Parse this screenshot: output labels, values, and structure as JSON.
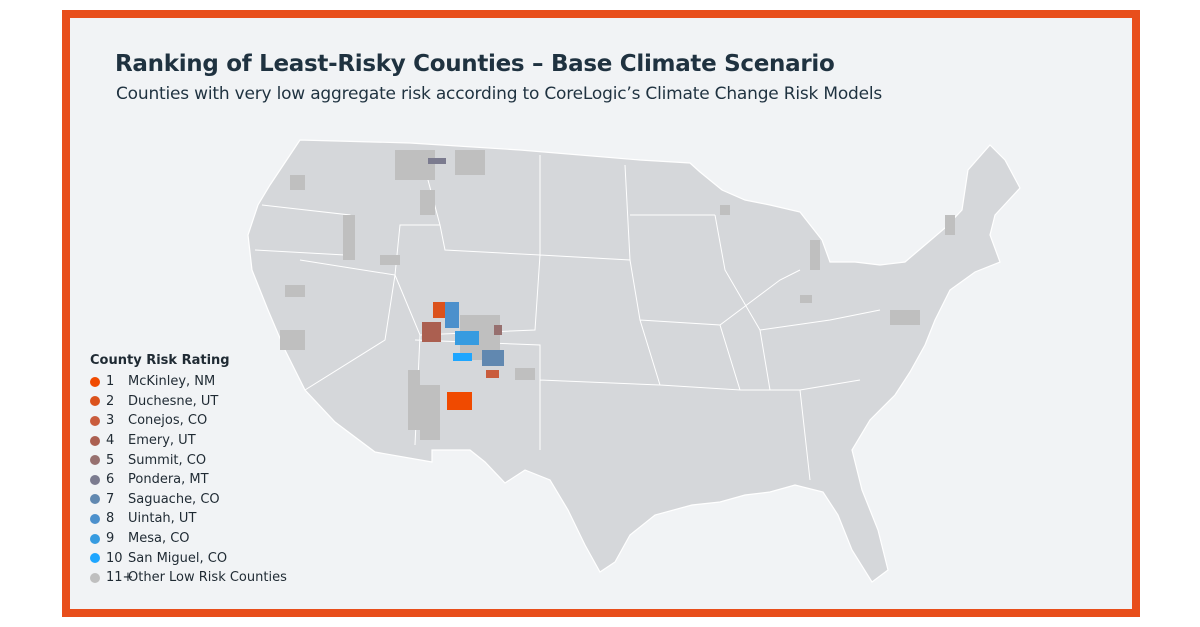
{
  "title": "Ranking of Least-Risky Counties – Base Climate Scenario",
  "subtitle": "Counties with very low aggregate risk according to CoreLogic’s Climate Change Risk Models",
  "colors": {
    "frame": "#e84e1b",
    "land": "#d5d7da",
    "other": "#bfbfbf",
    "background": "#f1f3f5"
  },
  "legend": {
    "title": "County Risk Rating",
    "items": [
      {
        "rank": "1",
        "label": "McKinley, NM",
        "color": "#f04a00"
      },
      {
        "rank": "2",
        "label": "Duchesne, UT",
        "color": "#db521c"
      },
      {
        "rank": "3",
        "label": "Conejos, CO",
        "color": "#c95c3c"
      },
      {
        "rank": "4",
        "label": "Emery, UT",
        "color": "#ab5f50"
      },
      {
        "rank": "5",
        "label": "Summit, CO",
        "color": "#97706f"
      },
      {
        "rank": "6",
        "label": "Pondera, MT",
        "color": "#7b7b8f"
      },
      {
        "rank": "7",
        "label": "Saguache, CO",
        "color": "#6188b0"
      },
      {
        "rank": "8",
        "label": "Uintah, UT",
        "color": "#4c90cc"
      },
      {
        "rank": "9",
        "label": "Mesa, CO",
        "color": "#369be0"
      },
      {
        "rank": "10",
        "label": "San Miguel, CO",
        "color": "#1ea6ff"
      },
      {
        "rank": "11+",
        "label": "Other Low Risk Counties",
        "color": "#bfbfbf"
      }
    ]
  }
}
